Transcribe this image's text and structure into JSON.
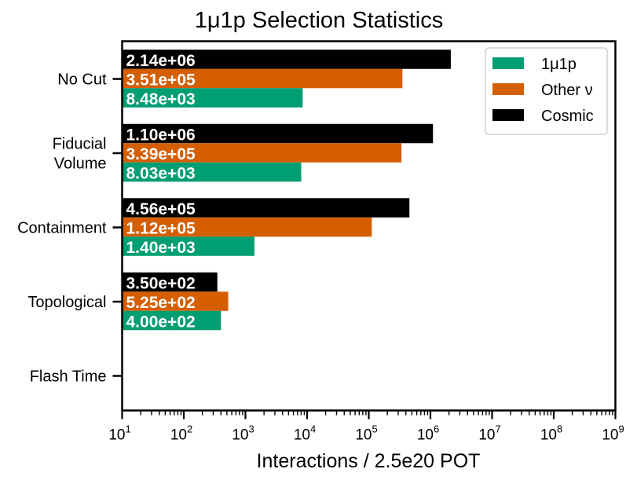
{
  "chart_data": {
    "type": "bar",
    "orientation": "horizontal",
    "title": "1μ1p Selection Statistics",
    "xlabel": "Interactions / 2.5e20 POT",
    "ylabel": "",
    "xscale": "log",
    "xlim": [
      10,
      1000000000
    ],
    "x_ticks": [
      {
        "base": "10",
        "exp": "1"
      },
      {
        "base": "10",
        "exp": "2"
      },
      {
        "base": "10",
        "exp": "3"
      },
      {
        "base": "10",
        "exp": "4"
      },
      {
        "base": "10",
        "exp": "5"
      },
      {
        "base": "10",
        "exp": "6"
      },
      {
        "base": "10",
        "exp": "7"
      },
      {
        "base": "10",
        "exp": "8"
      },
      {
        "base": "10",
        "exp": "9"
      }
    ],
    "categories": [
      [
        "No Cut"
      ],
      [
        "Fiducial",
        "Volume"
      ],
      [
        "Containment"
      ],
      [
        "Topological"
      ],
      [
        "Flash Time"
      ]
    ],
    "series": [
      {
        "name": "1μ1p",
        "color": "#009e73",
        "values": [
          8480,
          8030,
          1400,
          400,
          null
        ],
        "labels": [
          "8.48e+03",
          "8.03e+03",
          "1.40e+03",
          "4.00e+02",
          ""
        ]
      },
      {
        "name": "Other ν",
        "color": "#d55e00",
        "values": [
          351000,
          339000,
          112000,
          525,
          null
        ],
        "labels": [
          "3.51e+05",
          "3.39e+05",
          "1.12e+05",
          "5.25e+02",
          ""
        ]
      },
      {
        "name": "Cosmic",
        "color": "#000000",
        "values": [
          2140000,
          1100000,
          456000,
          350,
          null
        ],
        "labels": [
          "2.14e+06",
          "1.10e+06",
          "4.56e+05",
          "3.50e+02",
          ""
        ]
      }
    ],
    "legend": {
      "placement": "top-right"
    },
    "grid": false
  }
}
